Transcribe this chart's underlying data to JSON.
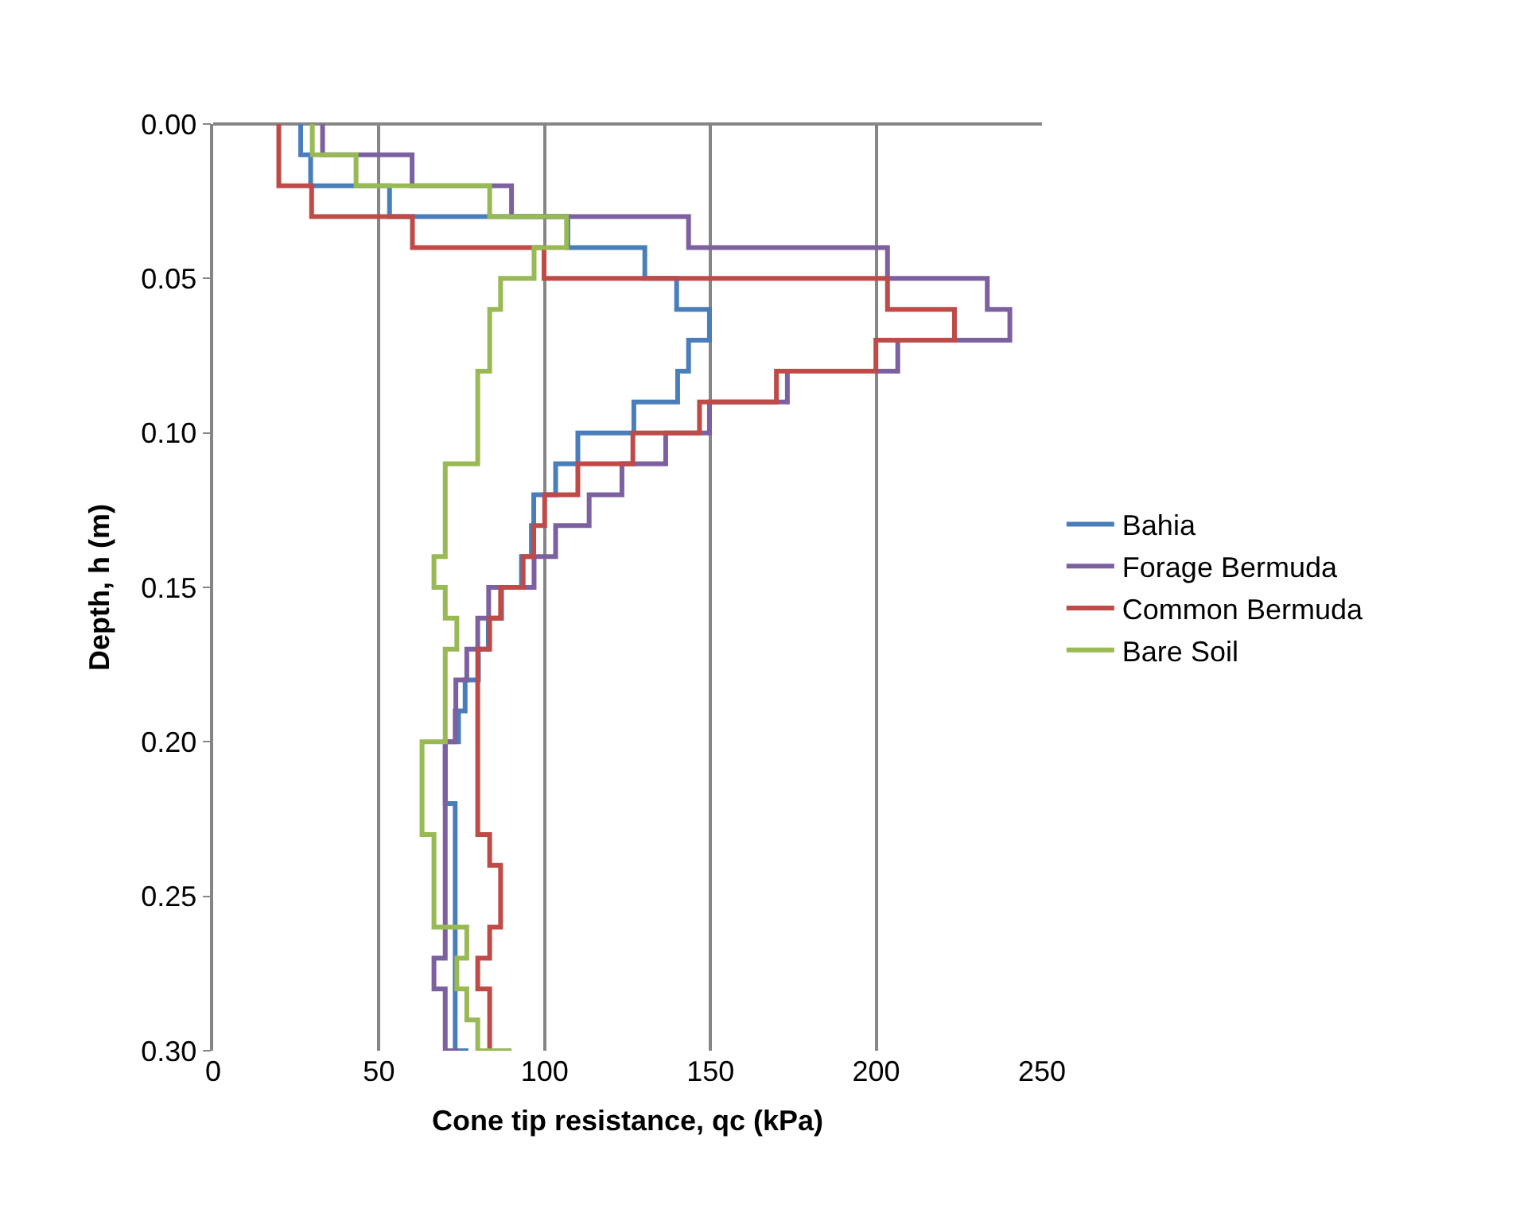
{
  "chart_data": {
    "type": "step",
    "xlabel": "Cone tip resistance, qc (kPa)",
    "ylabel": "Depth, h (m)",
    "xlim": [
      0,
      250
    ],
    "xticks": [
      0,
      50,
      100,
      150,
      200,
      250
    ],
    "ylim": [
      0.3,
      0
    ],
    "yticks": [
      {
        "value": 0,
        "label": "0.00"
      },
      {
        "value": 0.05,
        "label": "0.05"
      },
      {
        "value": 0.1,
        "label": "0.10"
      },
      {
        "value": 0.15,
        "label": "0.15"
      },
      {
        "value": 0.2,
        "label": "0.20"
      },
      {
        "value": 0.25,
        "label": "0.25"
      },
      {
        "value": 0.3,
        "label": "0.30"
      }
    ],
    "grid": "x",
    "legend": "right",
    "marker": "none",
    "line_style": "solid",
    "series": [
      {
        "name": "Bahia",
        "color": "#4a7ebb",
        "x": [
          26.4,
          29.4,
          53.2,
          107,
          130.2,
          139.8,
          149.7,
          143.4,
          140.1,
          126.9,
          110,
          103.3,
          96.7,
          96,
          93,
          87,
          83,
          80,
          76,
          74,
          70,
          70,
          73,
          73,
          73,
          73,
          73,
          73,
          73,
          73,
          77
        ],
        "values": [
          0,
          0.01,
          0.02,
          0.03,
          0.04,
          0.05,
          0.06,
          0.07,
          0.08,
          0.09,
          0.1,
          0.11,
          0.12,
          0.13,
          0.14,
          0.15,
          0.16,
          0.17,
          0.18,
          0.19,
          0.2,
          0.21,
          0.22,
          0.23,
          0.24,
          0.25,
          0.26,
          0.27,
          0.28,
          0.29,
          0.3
        ]
      },
      {
        "name": "Forage Bermuda",
        "color": "#7d60a0",
        "x": [
          33,
          60,
          90,
          143.4,
          203.4,
          233.5,
          240.3,
          206.5,
          173.2,
          149.7,
          136.5,
          123.3,
          113.4,
          103.3,
          96.8,
          83.1,
          79.8,
          76.5,
          73.2,
          73,
          70,
          70,
          70,
          70,
          70,
          70,
          70,
          66.6,
          70,
          70,
          74
        ],
        "values": [
          0,
          0.01,
          0.02,
          0.03,
          0.04,
          0.05,
          0.06,
          0.07,
          0.08,
          0.09,
          0.1,
          0.11,
          0.12,
          0.13,
          0.14,
          0.15,
          0.16,
          0.17,
          0.18,
          0.19,
          0.2,
          0.21,
          0.22,
          0.23,
          0.24,
          0.25,
          0.26,
          0.27,
          0.28,
          0.29,
          0.3
        ]
      },
      {
        "name": "Common Bermuda",
        "color": "#be4b48",
        "x": [
          19.8,
          19.8,
          29.7,
          60.1,
          99.8,
          203.4,
          223.6,
          199.9,
          169.9,
          146.7,
          126.6,
          110,
          100,
          96.7,
          93.5,
          86.7,
          83.4,
          79.8,
          79.8,
          79.8,
          79.8,
          79.8,
          79.8,
          83.4,
          86.7,
          86.7,
          83.4,
          79.8,
          83.4,
          83.4,
          83.4
        ],
        "values": [
          0,
          0.01,
          0.02,
          0.03,
          0.04,
          0.05,
          0.06,
          0.07,
          0.08,
          0.09,
          0.1,
          0.11,
          0.12,
          0.13,
          0.14,
          0.15,
          0.16,
          0.17,
          0.18,
          0.19,
          0.2,
          0.21,
          0.22,
          0.23,
          0.24,
          0.25,
          0.26,
          0.27,
          0.28,
          0.29,
          0.3
        ]
      },
      {
        "name": "Bare Soil",
        "color": "#98b954",
        "x": [
          29.9,
          43.1,
          83.4,
          106.6,
          96.8,
          86.7,
          83.4,
          83.4,
          79.8,
          79.8,
          79.8,
          70,
          70,
          70,
          66.6,
          70,
          73.5,
          70,
          70,
          70,
          63,
          63,
          63,
          66.6,
          66.6,
          66.6,
          76.5,
          73.5,
          76.5,
          79.8,
          90
        ],
        "values": [
          0,
          0.01,
          0.02,
          0.03,
          0.04,
          0.05,
          0.06,
          0.07,
          0.08,
          0.09,
          0.1,
          0.11,
          0.12,
          0.13,
          0.14,
          0.15,
          0.16,
          0.17,
          0.18,
          0.19,
          0.2,
          0.21,
          0.22,
          0.23,
          0.24,
          0.25,
          0.26,
          0.27,
          0.28,
          0.29,
          0.3
        ]
      }
    ]
  }
}
